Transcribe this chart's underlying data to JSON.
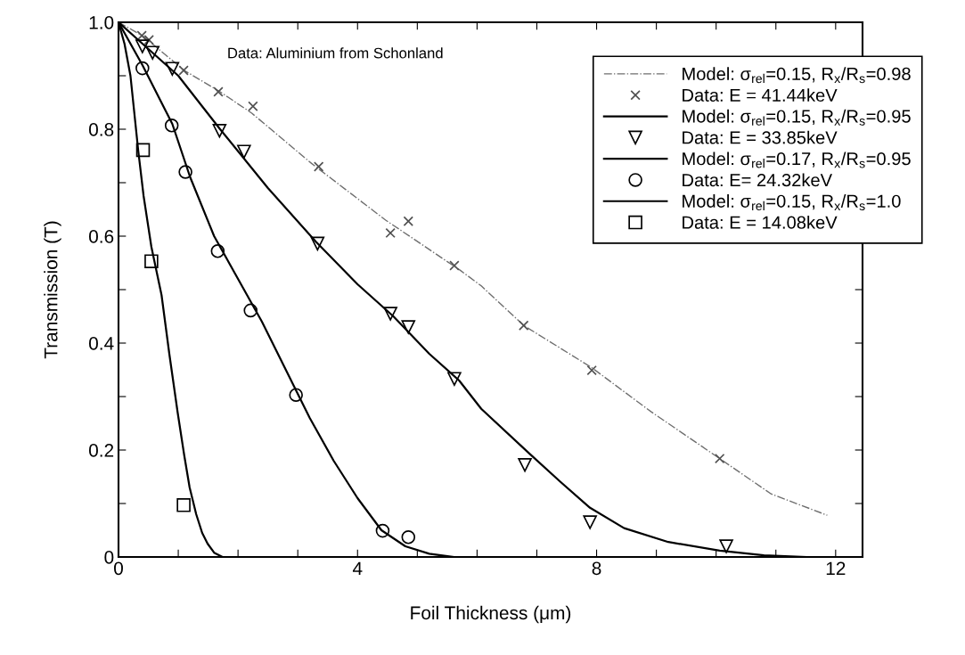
{
  "chart_data": {
    "type": "line",
    "xlabel": "Foil Thickness (μm)",
    "ylabel": "Transmission (T)",
    "annotations": [
      "Data: Aluminium from Schonland"
    ],
    "xlim": [
      0,
      12.45
    ],
    "ylim": [
      0,
      1.0
    ],
    "xticks": [
      0,
      {
        "value": 1,
        "label": null
      },
      {
        "value": 2,
        "label": null
      },
      {
        "value": 3,
        "label": null
      },
      4,
      {
        "value": 5,
        "label": null
      },
      {
        "value": 6,
        "label": null
      },
      {
        "value": 7,
        "label": null
      },
      8,
      {
        "value": 9,
        "label": null
      },
      {
        "value": 10,
        "label": null
      },
      {
        "value": 11,
        "label": null
      },
      12
    ],
    "yticks": [
      {
        "value": 0,
        "label": "0"
      },
      {
        "value": 0.1,
        "label": null
      },
      0.2,
      {
        "value": 0.3,
        "label": null
      },
      0.4,
      {
        "value": 0.5,
        "label": null
      },
      0.6,
      {
        "value": 0.7,
        "label": null
      },
      0.8,
      {
        "value": 0.9,
        "label": null
      },
      {
        "value": 1.0,
        "label": "1.0"
      }
    ],
    "grid": false,
    "legend": "top right",
    "series": [
      {
        "name": "Model: σ$_{rel}$=0.15, R$_{x}$/R$_{s}$=0.98",
        "color": "#6e6e6e",
        "line_style": "dashdot",
        "marker": "none",
        "x": [
          0,
          0.4,
          1.1,
          1.7,
          2.23,
          3.23,
          4.47,
          5.72,
          6.07,
          6.78,
          7.92,
          8.92,
          10.06,
          10.92,
          11.86
        ],
        "values": [
          1.0,
          0.975,
          0.91,
          0.87,
          0.83,
          0.736,
          0.63,
          0.536,
          0.507,
          0.433,
          0.354,
          0.271,
          0.184,
          0.118,
          0.078
        ]
      },
      {
        "name": "Data: E = 41.44keV",
        "type": "scatter",
        "color": "#505050",
        "marker": "cross",
        "x": [
          0.39,
          0.51,
          1.09,
          1.67,
          2.25,
          3.35,
          4.55,
          4.85,
          5.62,
          6.78,
          7.92,
          10.06
        ],
        "values": [
          0.975,
          0.967,
          0.91,
          0.87,
          0.843,
          0.73,
          0.606,
          0.628,
          0.545,
          0.433,
          0.349,
          0.184
        ]
      },
      {
        "name": "Model: σ$_{rel}$=0.15, R$_{x}$/R$_{s}$=0.95",
        "color": "#000000",
        "line_style": "solid",
        "marker": "none",
        "x": [
          0,
          0.5,
          1.0,
          1.7,
          2.5,
          3.3,
          4.0,
          4.6,
          5.2,
          5.7,
          6.07,
          6.87,
          7.4,
          7.89,
          8.46,
          9.2,
          10.06,
          10.8,
          11.5
        ],
        "values": [
          1.0,
          0.95,
          0.9,
          0.8,
          0.69,
          0.59,
          0.51,
          0.45,
          0.38,
          0.33,
          0.277,
          0.194,
          0.14,
          0.092,
          0.054,
          0.028,
          0.012,
          0.003,
          0
        ]
      },
      {
        "name": "Data: E = 33.85keV",
        "type": "scatter",
        "color": "#000000",
        "marker": "triangle",
        "x": [
          0.4,
          0.57,
          0.9,
          1.69,
          2.1,
          3.33,
          4.55,
          4.85,
          5.62,
          6.8,
          7.89,
          10.17
        ],
        "values": [
          0.955,
          0.943,
          0.913,
          0.797,
          0.758,
          0.586,
          0.455,
          0.43,
          0.333,
          0.172,
          0.065,
          0.02
        ]
      },
      {
        "name": "Model: σ$_{rel}$=0.17, R$_{x}$/R$_{s}$=0.95",
        "color": "#000000",
        "line_style": "solid",
        "marker": "none",
        "x": [
          0,
          0.4,
          0.9,
          1.2,
          1.6,
          2.0,
          2.4,
          2.8,
          3.2,
          3.6,
          4.0,
          4.4,
          4.8,
          5.2,
          5.6
        ],
        "values": [
          1.0,
          0.92,
          0.81,
          0.71,
          0.6,
          0.52,
          0.44,
          0.35,
          0.26,
          0.18,
          0.11,
          0.05,
          0.02,
          0.006,
          0
        ]
      },
      {
        "name": "Data: E= 24.32keV",
        "type": "scatter",
        "color": "#000000",
        "marker": "circle",
        "x": [
          0.4,
          0.89,
          1.12,
          1.66,
          2.21,
          2.97,
          4.42,
          4.85
        ],
        "values": [
          0.914,
          0.807,
          0.72,
          0.572,
          0.461,
          0.303,
          0.049,
          0.037
        ]
      },
      {
        "name": "Model: σ$_{rel}$=0.15, R$_{x}$/R$_{s}$=1.0",
        "color": "#000000",
        "line_style": "solid",
        "marker": "none",
        "x": [
          0,
          0.1,
          0.2,
          0.33,
          0.42,
          0.55,
          0.72,
          0.85,
          0.99,
          1.1,
          1.19,
          1.3,
          1.4,
          1.49,
          1.6,
          1.74
        ],
        "values": [
          1.0,
          0.96,
          0.9,
          0.76,
          0.675,
          0.58,
          0.49,
          0.38,
          0.27,
          0.19,
          0.13,
          0.08,
          0.045,
          0.025,
          0.008,
          0
        ]
      },
      {
        "name": "Data: E = 14.08keV",
        "type": "scatter",
        "color": "#000000",
        "marker": "square",
        "x": [
          0.41,
          0.55,
          1.09
        ],
        "values": [
          0.761,
          0.553,
          0.097
        ]
      }
    ]
  }
}
